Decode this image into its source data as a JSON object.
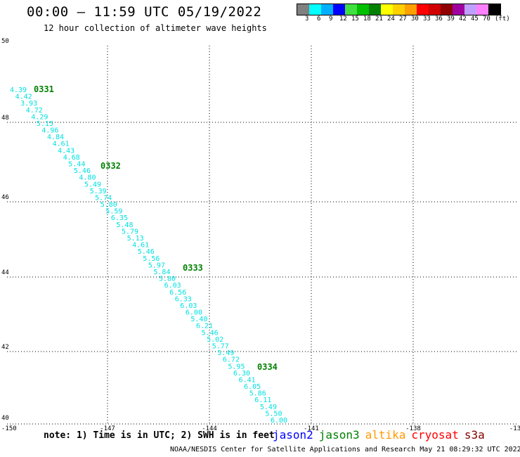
{
  "header": {
    "title": "00:00 – 11:59 UTC 05/19/2022",
    "subtitle": "12 hour collection of altimeter wave heights"
  },
  "colorbar": {
    "colors": [
      "#808080",
      "#00ffff",
      "#00b0ff",
      "#0000ff",
      "#40e040",
      "#00c000",
      "#008000",
      "#ffff00",
      "#ffd000",
      "#ffa000",
      "#ff0000",
      "#d00000",
      "#900000",
      "#a000a0",
      "#c0a0ff",
      "#ff80ff",
      "#000000"
    ],
    "labels": [
      "3",
      "6",
      "9",
      "12",
      "15",
      "18",
      "21",
      "24",
      "27",
      "30",
      "33",
      "36",
      "39",
      "42",
      "45",
      "70",
      "(ft)"
    ]
  },
  "map": {
    "lat_ticks": [
      "50",
      "48",
      "46",
      "44",
      "42",
      "40"
    ],
    "lon_ticks": [
      "-150",
      "-147",
      "-144",
      "-141",
      "-138",
      "-13"
    ],
    "lat_range": [
      40,
      50
    ],
    "lon_range": [
      -150,
      -135
    ]
  },
  "wave_heights": [
    "4.39",
    "4.42",
    "3.93",
    "4.72",
    "4.29",
    "5.15",
    "4.96",
    "4.84",
    "4.61",
    "4.43",
    "4.68",
    "5.44",
    "5.46",
    "4.80",
    "5.49",
    "5.39",
    "5.74",
    "5.80",
    "5.59",
    "6.35",
    "5.48",
    "5.79",
    "5.13",
    "4.61",
    "5.46",
    "5.56",
    "5.97",
    "5.84",
    "5.80",
    "6.03",
    "6.56",
    "6.33",
    "6.03",
    "6.00",
    "5.40",
    "6.21",
    "5.46",
    "5.02",
    "5.77",
    "5.49",
    "6.72",
    "5.95",
    "6.30",
    "6.41",
    "6.05",
    "5.86",
    "6.11",
    "5.49",
    "5.50",
    "6.00"
  ],
  "passes": [
    "0331",
    "0332",
    "0333",
    "0334"
  ],
  "note": "note: 1) Time is in UTC; 2) SWH is in feet",
  "legend": [
    {
      "label": "jason2",
      "color": "#0000ff"
    },
    {
      "label": "jason3",
      "color": "#008000"
    },
    {
      "label": "altika",
      "color": "#ff9900"
    },
    {
      "label": "cryosat",
      "color": "#ff0000"
    },
    {
      "label": "s3a",
      "color": "#800000"
    }
  ],
  "footer": "NOAA/NESDIS Center for Satellite Applications and Research    May 21 08:29:32 UTC 2022"
}
